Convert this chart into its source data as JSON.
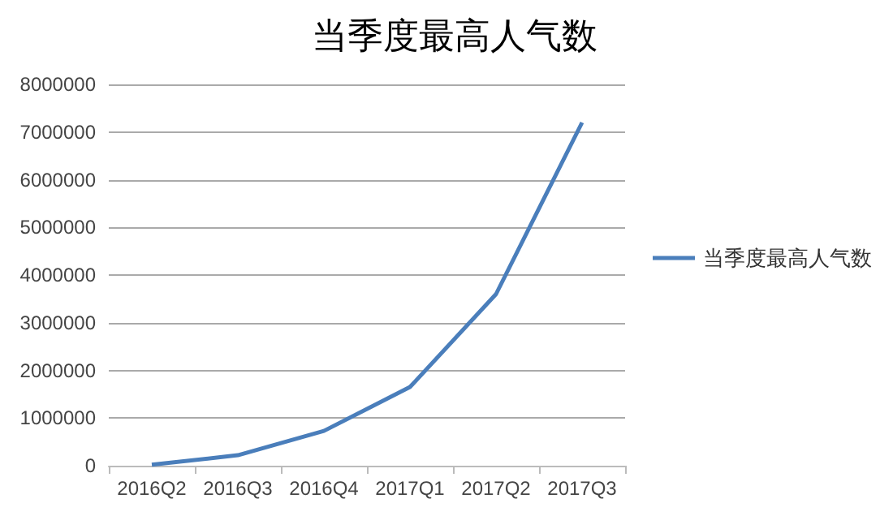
{
  "chart_data": {
    "type": "line",
    "title": "当季度最高人气数",
    "categories": [
      "2016Q2",
      "2016Q3",
      "2016Q4",
      "2017Q1",
      "2017Q2",
      "2017Q3"
    ],
    "series": [
      {
        "name": "当季度最高人气数",
        "color": "#4a7ebb",
        "values": [
          20000,
          220000,
          730000,
          1650000,
          3600000,
          7200000
        ]
      }
    ],
    "ylim": [
      0,
      8000000
    ],
    "yticks": [
      0,
      1000000,
      2000000,
      3000000,
      4000000,
      5000000,
      6000000,
      7000000,
      8000000
    ],
    "grid": "y",
    "legend": "right",
    "marker": "none"
  }
}
